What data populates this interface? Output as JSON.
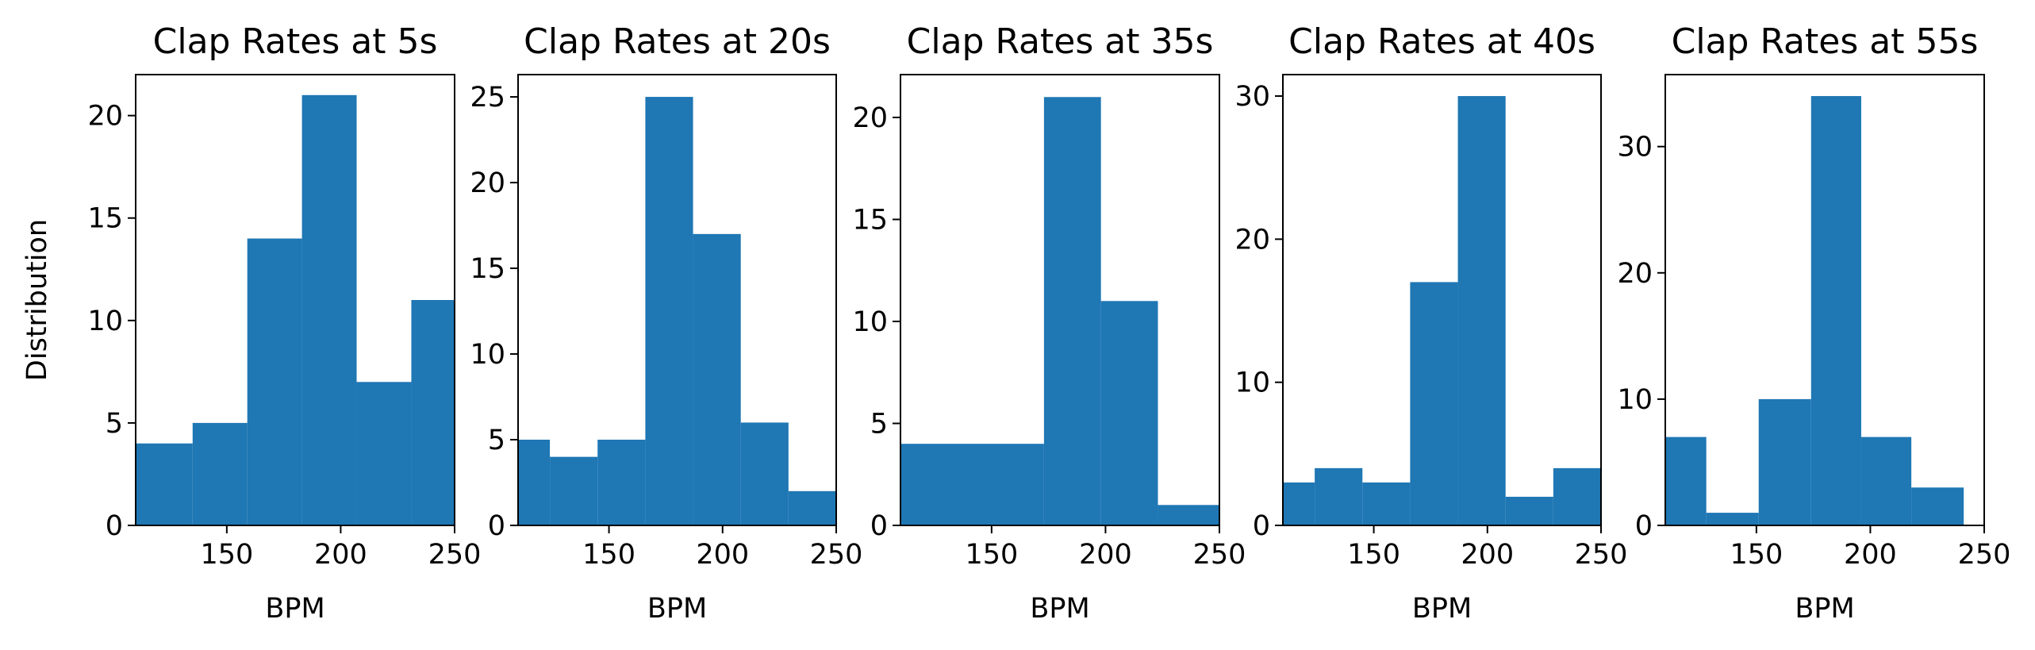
{
  "colors": {
    "bar": "#1f77b4",
    "axes": "#000000",
    "background": "#ffffff"
  },
  "chart_data": [
    {
      "type": "bar",
      "title": "Clap Rates at 5s",
      "xlabel": "BPM",
      "ylabel": "Distribution",
      "xlim": [
        110,
        250
      ],
      "ylim": [
        0,
        22
      ],
      "xticks": [
        150,
        200,
        250
      ],
      "yticks": [
        0,
        5,
        10,
        15,
        20
      ],
      "bins": [
        {
          "x0": 110,
          "x1": 135,
          "value": 4
        },
        {
          "x0": 135,
          "x1": 159,
          "value": 5
        },
        {
          "x0": 159,
          "x1": 183,
          "value": 14
        },
        {
          "x0": 183,
          "x1": 207,
          "value": 21
        },
        {
          "x0": 207,
          "x1": 231,
          "value": 7
        },
        {
          "x0": 231,
          "x1": 250,
          "value": 11
        }
      ]
    },
    {
      "type": "bar",
      "title": "Clap Rates at 20s",
      "xlabel": "BPM",
      "ylabel": "",
      "xlim": [
        110,
        250
      ],
      "ylim": [
        0,
        26.3
      ],
      "xticks": [
        150,
        200,
        250
      ],
      "yticks": [
        0,
        5,
        10,
        15,
        20,
        25
      ],
      "bins": [
        {
          "x0": 110,
          "x1": 124,
          "value": 5
        },
        {
          "x0": 124,
          "x1": 145,
          "value": 4
        },
        {
          "x0": 145,
          "x1": 166,
          "value": 5
        },
        {
          "x0": 166,
          "x1": 187,
          "value": 25
        },
        {
          "x0": 187,
          "x1": 208,
          "value": 17
        },
        {
          "x0": 208,
          "x1": 229,
          "value": 6
        },
        {
          "x0": 229,
          "x1": 250,
          "value": 2
        }
      ]
    },
    {
      "type": "bar",
      "title": "Clap Rates at 35s",
      "xlabel": "BPM",
      "ylabel": "",
      "xlim": [
        110,
        250
      ],
      "ylim": [
        0,
        22.1
      ],
      "xticks": [
        150,
        200,
        250
      ],
      "yticks": [
        0,
        5,
        10,
        15,
        20
      ],
      "bins": [
        {
          "x0": 110,
          "x1": 173,
          "value": 4
        },
        {
          "x0": 173,
          "x1": 198,
          "value": 21
        },
        {
          "x0": 198,
          "x1": 223,
          "value": 11
        },
        {
          "x0": 223,
          "x1": 250,
          "value": 1
        }
      ]
    },
    {
      "type": "bar",
      "title": "Clap Rates at 40s",
      "xlabel": "BPM",
      "ylabel": "",
      "xlim": [
        110,
        250
      ],
      "ylim": [
        0,
        31.5
      ],
      "xticks": [
        150,
        200,
        250
      ],
      "yticks": [
        0,
        10,
        20,
        30
      ],
      "bins": [
        {
          "x0": 110,
          "x1": 124,
          "value": 3
        },
        {
          "x0": 124,
          "x1": 145,
          "value": 4
        },
        {
          "x0": 145,
          "x1": 166,
          "value": 3
        },
        {
          "x0": 166,
          "x1": 187,
          "value": 17
        },
        {
          "x0": 187,
          "x1": 208,
          "value": 30
        },
        {
          "x0": 208,
          "x1": 229,
          "value": 2
        },
        {
          "x0": 229,
          "x1": 250,
          "value": 4
        }
      ]
    },
    {
      "type": "bar",
      "title": "Clap Rates at 55s",
      "xlabel": "BPM",
      "ylabel": "",
      "xlim": [
        110,
        250
      ],
      "ylim": [
        0,
        35.7
      ],
      "xticks": [
        150,
        200,
        250
      ],
      "yticks": [
        0,
        10,
        20,
        30
      ],
      "bins": [
        {
          "x0": 110,
          "x1": 128,
          "value": 7
        },
        {
          "x0": 128,
          "x1": 151,
          "value": 1
        },
        {
          "x0": 151,
          "x1": 174,
          "value": 10
        },
        {
          "x0": 174,
          "x1": 196,
          "value": 34
        },
        {
          "x0": 196,
          "x1": 218,
          "value": 7
        },
        {
          "x0": 218,
          "x1": 241,
          "value": 3
        }
      ]
    }
  ]
}
